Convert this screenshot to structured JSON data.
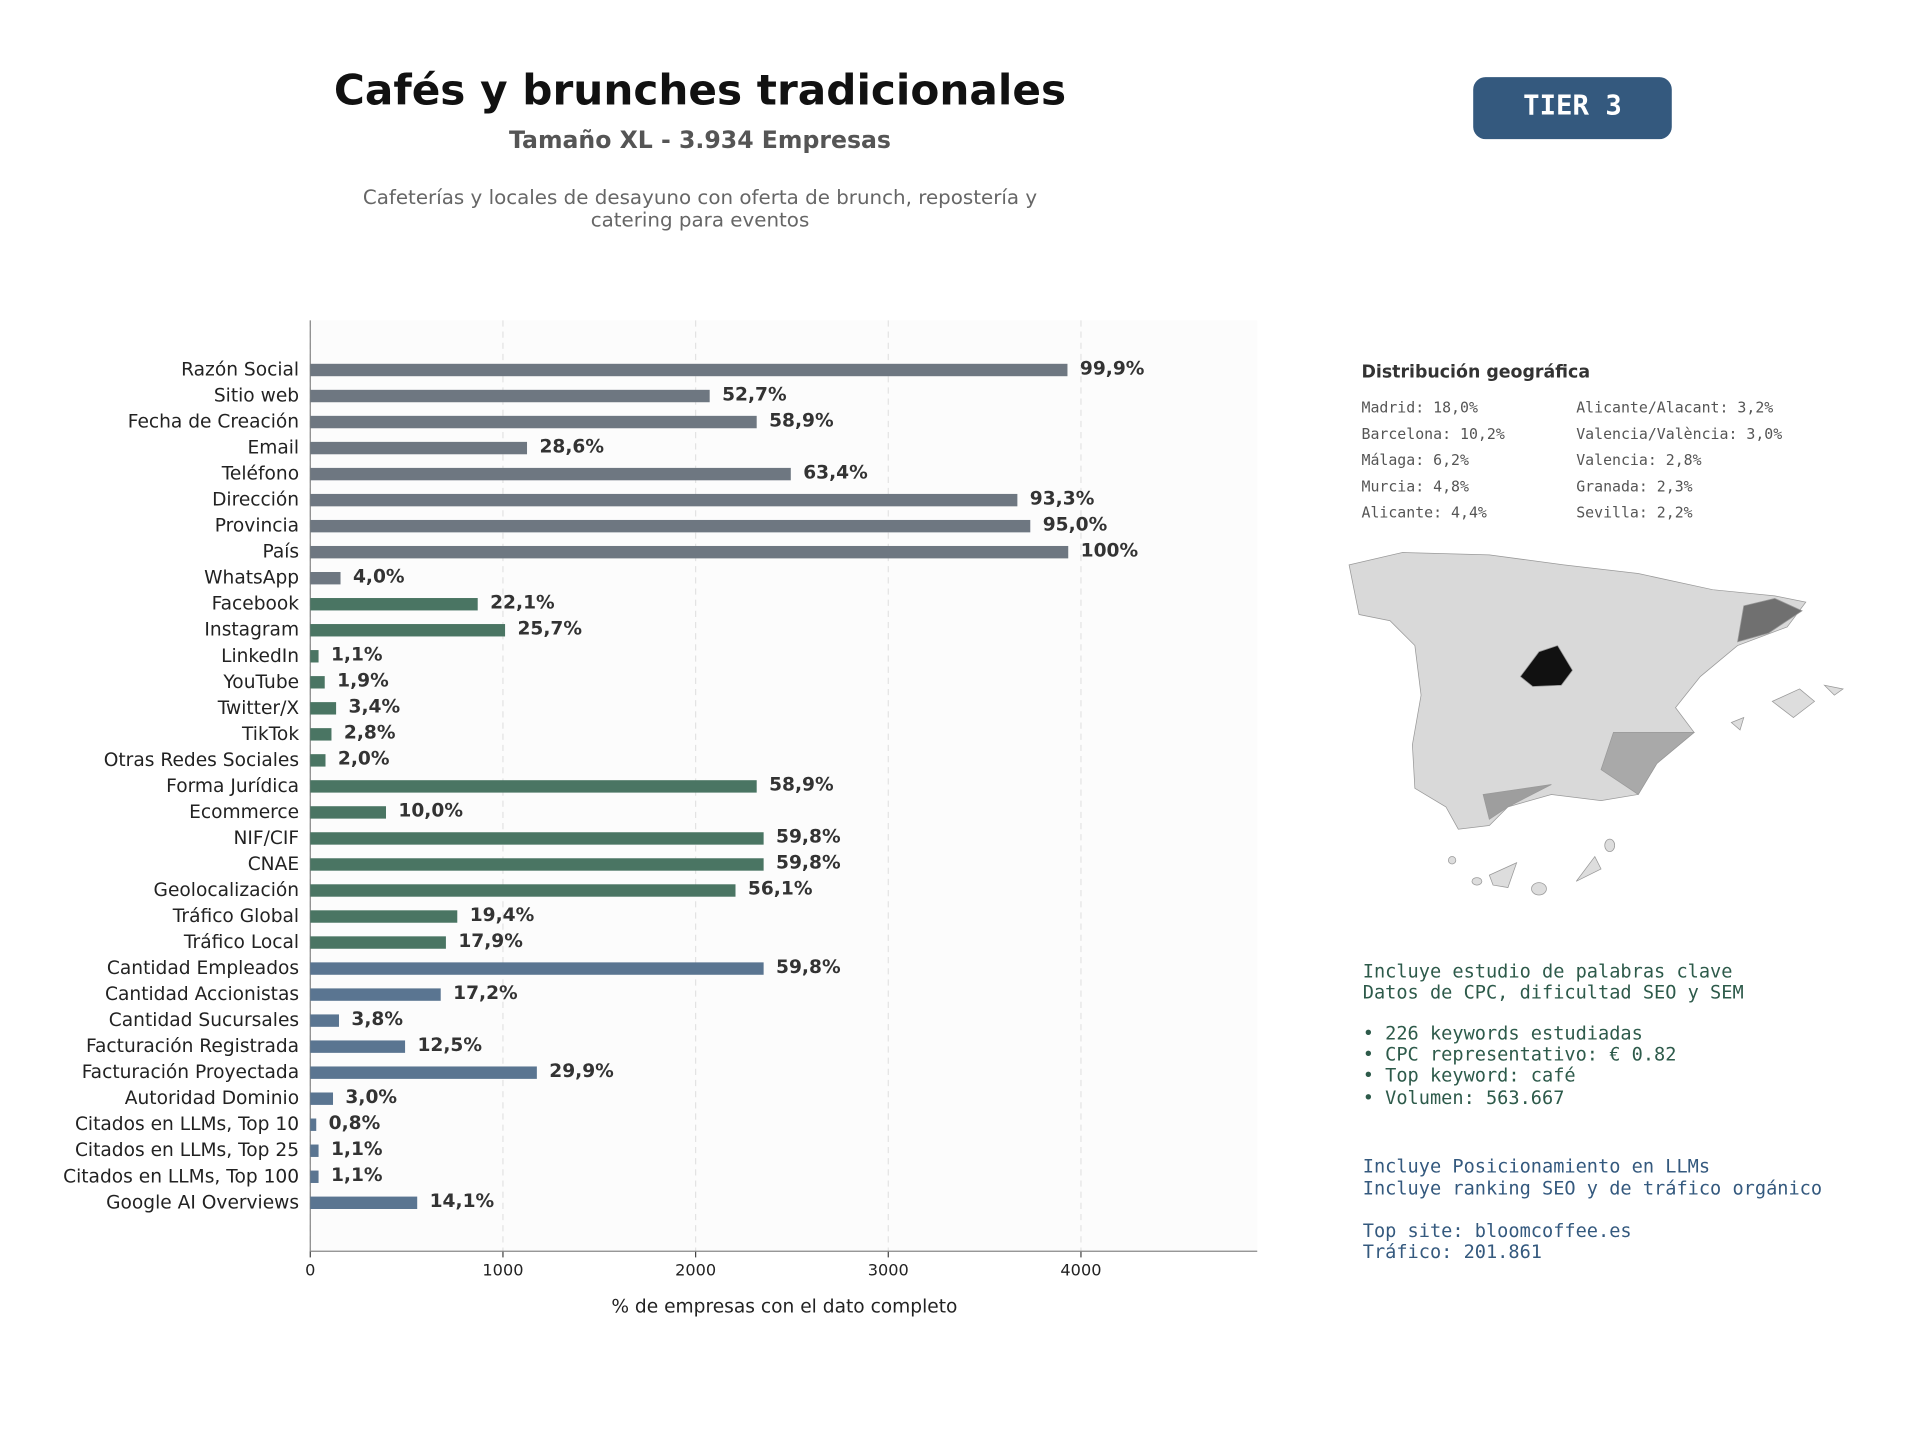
{
  "chart_data": {
    "type": "bar",
    "orientation": "horizontal",
    "title": "Cafés y brunches tradicionales",
    "subtitle": "Tamaño XL - 3.934 Empresas",
    "description": [
      "Cafeterías y locales de desayuno con oferta de brunch, repostería y",
      "catering para eventos"
    ],
    "xlabel": "% de empresas con el dato completo",
    "categories": [
      "Razón Social",
      "Sitio web",
      "Fecha de Creación",
      "Email",
      "Teléfono",
      "Dirección",
      "Provincia",
      "País",
      "WhatsApp",
      "Facebook",
      "Instagram",
      "LinkedIn",
      "YouTube",
      "Twitter/X",
      "TikTok",
      "Otras Redes Sociales",
      "Forma Jurídica",
      "Ecommerce",
      "NIF/CIF",
      "CNAE",
      "Geolocalización",
      "Tráfico Global",
      "Tráfico Local",
      "Cantidad Empleados",
      "Cantidad Accionistas",
      "Cantidad Sucursales",
      "Facturación Registrada",
      "Facturación Proyectada",
      "Autoridad Dominio",
      "Citados en LLMs, Top 10",
      "Citados en LLMs, Top 25",
      "Citados en LLMs, Top 100",
      "Google AI Overviews"
    ],
    "values": [
      3930,
      2073,
      2317,
      1125,
      2494,
      3670,
      3737,
      3934,
      157,
      869,
      1011,
      43,
      75,
      134,
      110,
      79,
      2317,
      393,
      2353,
      2353,
      2207,
      763,
      704,
      2353,
      677,
      149,
      492,
      1176,
      118,
      31,
      43,
      43,
      555
    ],
    "value_labels": [
      "99,9%",
      "52,7%",
      "58,9%",
      "28,6%",
      "63,4%",
      "93,3%",
      "95,0%",
      "100%",
      "4,0%",
      "22,1%",
      "25,7%",
      "1,1%",
      "1,9%",
      "3,4%",
      "2,8%",
      "2,0%",
      "58,9%",
      "10,0%",
      "59,8%",
      "59,8%",
      "56,1%",
      "19,4%",
      "17,9%",
      "59,8%",
      "17,2%",
      "3,8%",
      "12,5%",
      "29,9%",
      "3,0%",
      "0,8%",
      "1,1%",
      "1,1%",
      "14,1%"
    ],
    "colors": [
      "#6e7781",
      "#6e7781",
      "#6e7781",
      "#6e7781",
      "#6e7781",
      "#6e7781",
      "#6e7781",
      "#6e7781",
      "#6e7781",
      "#4a7563",
      "#4a7563",
      "#4a7563",
      "#4a7563",
      "#4a7563",
      "#4a7563",
      "#4a7563",
      "#4a7563",
      "#4a7563",
      "#4a7563",
      "#4a7563",
      "#4a7563",
      "#4a7563",
      "#4a7563",
      "#5a7591",
      "#5a7591",
      "#5a7591",
      "#5a7591",
      "#5a7591",
      "#5a7591",
      "#5a7591",
      "#5a7591",
      "#5a7591",
      "#5a7591"
    ],
    "xlim": [
      0,
      4915
    ],
    "xticks": [
      0,
      1000,
      2000,
      3000,
      4000
    ],
    "grid": true
  },
  "badge": "TIER 3",
  "geo": {
    "title": "Distribución geográfica",
    "items": [
      "Madrid: 18,0%",
      "Barcelona: 10,2%",
      "Málaga: 6,2%",
      "Murcia: 4,8%",
      "Alicante: 4,4%",
      "Alicante/Alacant: 3,2%",
      "Valencia/València: 3,0%",
      "Valencia: 2,8%",
      "Granada: 2,3%",
      "Sevilla: 2,2%"
    ]
  },
  "keywords": [
    "Incluye estudio de palabras clave",
    "Datos de CPC, dificultad SEO y SEM",
    "• 226 keywords estudiadas",
    "• CPC representativo: € 0.82",
    "• Top keyword: café",
    "• Volumen: 563.667"
  ],
  "llm": [
    "Incluye Posicionamiento en LLMs",
    "Incluye ranking SEO y de tráfico orgánico",
    "Top site: bloomcoffee.es",
    "Tráfico: 201.861"
  ]
}
